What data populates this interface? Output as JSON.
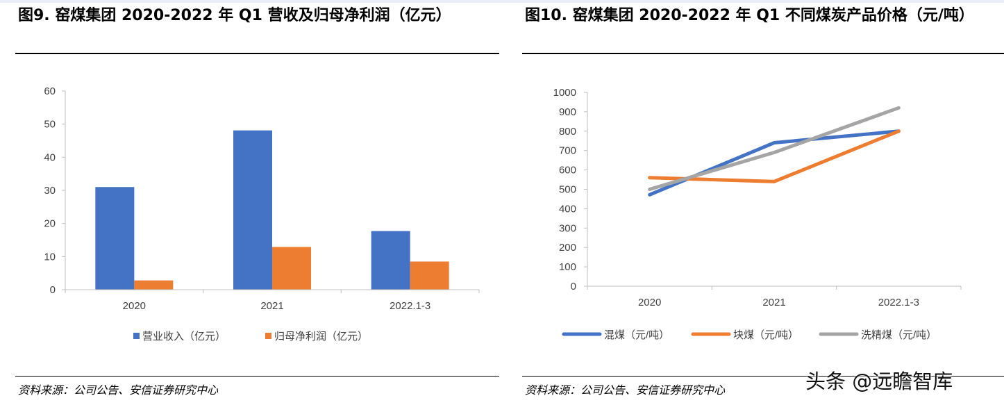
{
  "figures": [
    {
      "title": "图9. 窑煤集团 2020-2022 年 Q1 营收及归母净利润（亿元）",
      "source": "资料来源：公司公告、安信证券研究中心"
    },
    {
      "title": "图10. 窑煤集团 2020-2022 年 Q1 不同煤炭产品价格（元/吨）",
      "source": "资料来源：公司公告、安信证券研究中心"
    }
  ],
  "watermark": "头条 @远瞻智库",
  "chart_data": [
    {
      "type": "bar",
      "title": "图9. 窑煤集团 2020-2022 年 Q1 营收及归母净利润（亿元）",
      "categories": [
        "2020",
        "2021",
        "2022.1-3"
      ],
      "series": [
        {
          "name": "营业收入（亿元）",
          "values": [
            31,
            48.1,
            17.7
          ],
          "color": "#4472c4"
        },
        {
          "name": "归母净利润（亿元）",
          "values": [
            2.8,
            12.9,
            8.5
          ],
          "color": "#ed7d31"
        }
      ],
      "ylim": [
        0,
        60
      ],
      "yticks": [
        0,
        10,
        20,
        30,
        40,
        50,
        60
      ],
      "xlabel": "",
      "ylabel": "",
      "grid": false,
      "legend": "bottom"
    },
    {
      "type": "line",
      "title": "图10. 窑煤集团 2020-2022 年 Q1 不同煤炭产品价格（元/吨）",
      "categories": [
        "2020",
        "2021",
        "2022.1-3"
      ],
      "series": [
        {
          "name": "混煤（元/吨）",
          "values": [
            472,
            740,
            800
          ],
          "color": "#4472c4"
        },
        {
          "name": "块煤（元/吨）",
          "values": [
            560,
            540,
            800
          ],
          "color": "#ed7d31"
        },
        {
          "name": "洗精煤（元/吨）",
          "values": [
            500,
            690,
            920
          ],
          "color": "#a5a5a5"
        }
      ],
      "ylim": [
        0,
        1000
      ],
      "yticks": [
        0,
        100,
        200,
        300,
        400,
        500,
        600,
        700,
        800,
        900,
        1000
      ],
      "xlabel": "",
      "ylabel": "",
      "grid": false,
      "legend": "bottom"
    }
  ]
}
